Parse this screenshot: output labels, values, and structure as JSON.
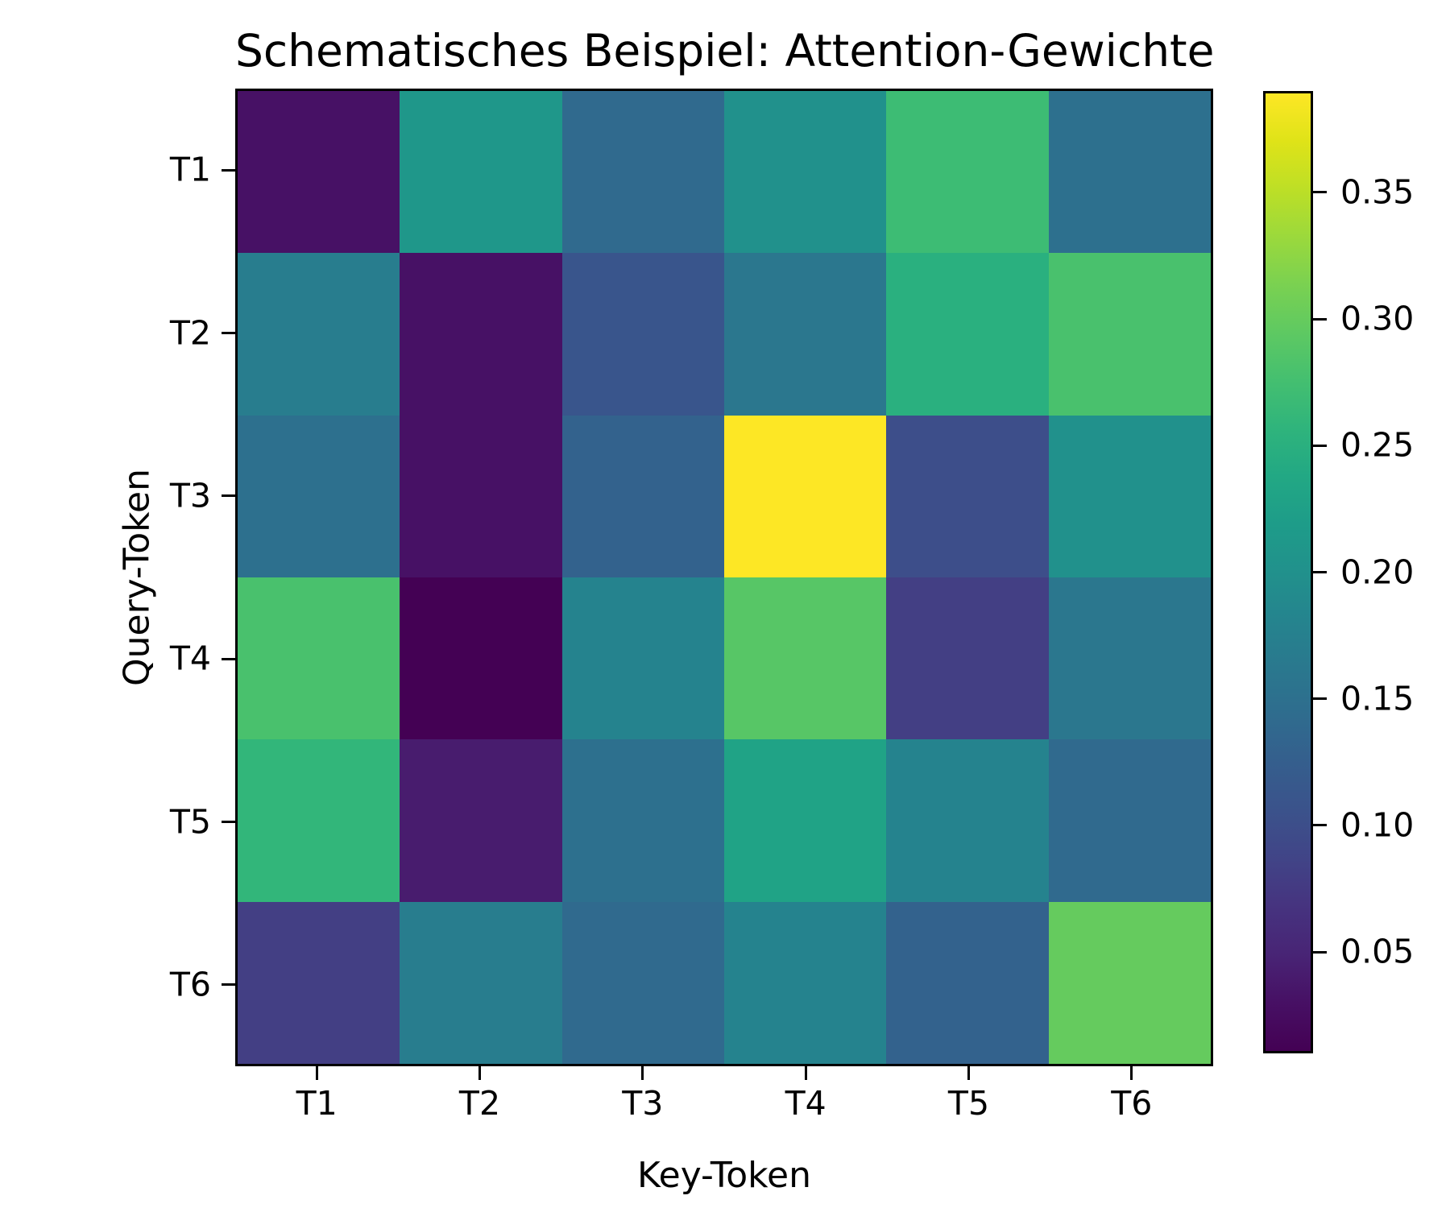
{
  "chart_data": {
    "type": "heatmap",
    "title": "Schematisches Beispiel: Attention-Gewichte",
    "xlabel": "Key-Token",
    "ylabel": "Query-Token",
    "x_categories": [
      "T1",
      "T2",
      "T3",
      "T4",
      "T5",
      "T6"
    ],
    "y_categories": [
      "T1",
      "T2",
      "T3",
      "T4",
      "T5",
      "T6"
    ],
    "values": [
      [
        0.03,
        0.21,
        0.14,
        0.2,
        0.27,
        0.15
      ],
      [
        0.17,
        0.03,
        0.11,
        0.16,
        0.25,
        0.28
      ],
      [
        0.15,
        0.03,
        0.13,
        0.39,
        0.1,
        0.2
      ],
      [
        0.28,
        0.01,
        0.18,
        0.29,
        0.08,
        0.16
      ],
      [
        0.26,
        0.04,
        0.15,
        0.23,
        0.18,
        0.14
      ],
      [
        0.08,
        0.17,
        0.14,
        0.18,
        0.13,
        0.3
      ]
    ],
    "colormap": "viridis",
    "vmin": 0.01,
    "vmax": 0.39,
    "min_color": "#440154",
    "max_color": "#fde725",
    "colorbar_position": "right",
    "colorbar_ticks": [
      0.35,
      0.3,
      0.25,
      0.2,
      0.15,
      0.1,
      0.05
    ],
    "colorbar_tick_labels": [
      "0.35",
      "0.30",
      "0.25",
      "0.20",
      "0.15",
      "0.10",
      "0.05"
    ],
    "grid": false,
    "legend": "none"
  }
}
